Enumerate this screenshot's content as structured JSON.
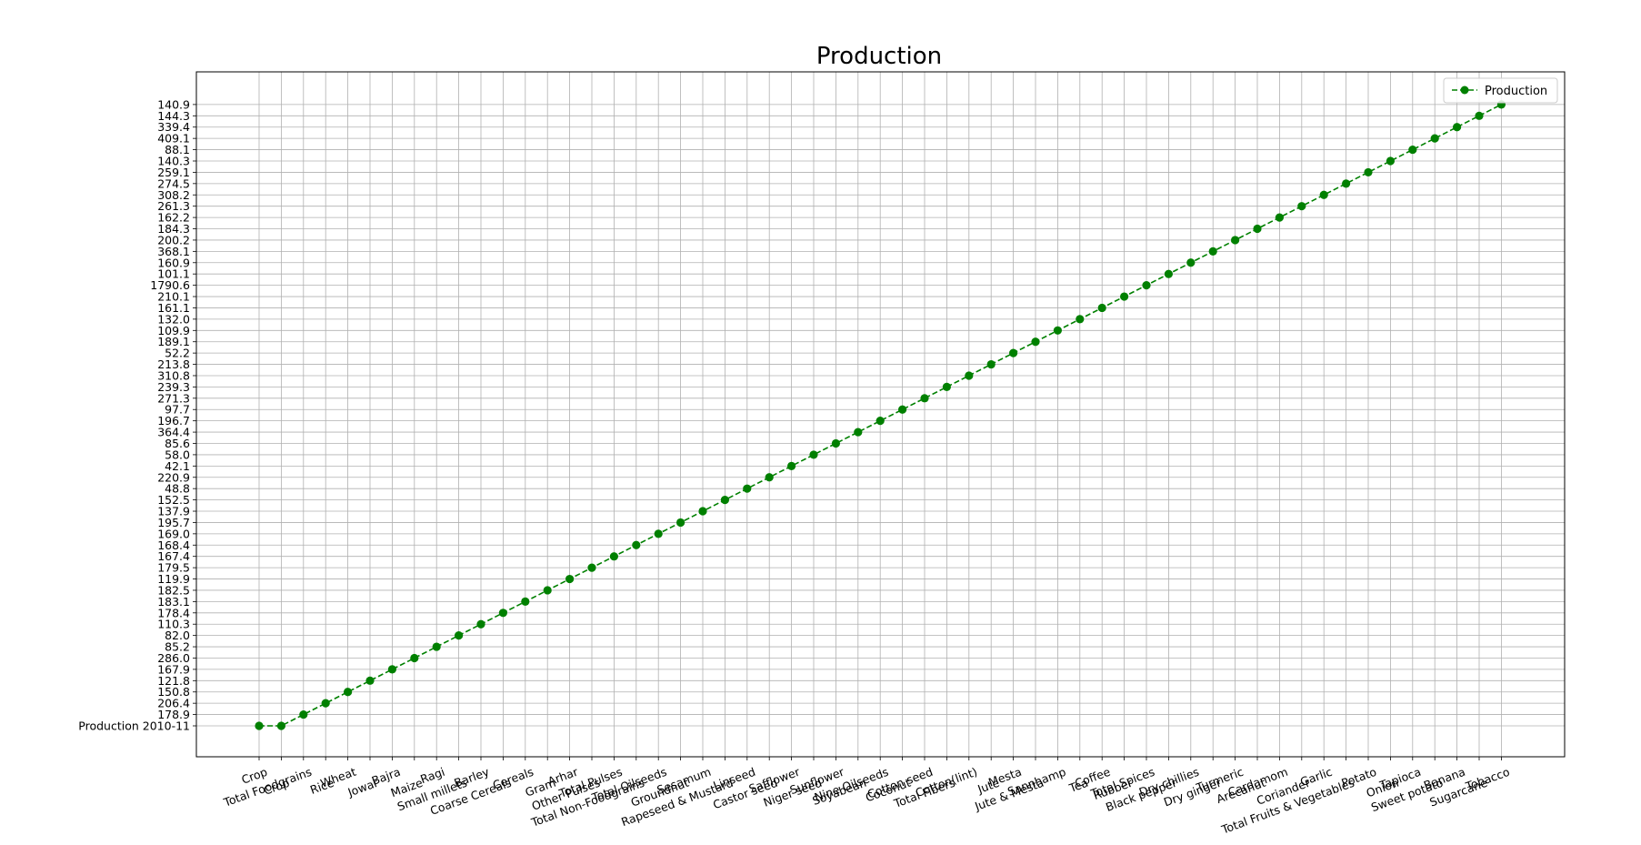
{
  "chart_data": {
    "type": "line",
    "title": "Production",
    "xlabel": "",
    "ylabel": "",
    "grid": true,
    "legend_position": "top-right",
    "categories": [
      "Crop",
      "Crop",
      "Total Foodgrains",
      "Rice",
      "Wheat",
      "Jowar",
      "Bajra",
      "Maize",
      "Ragi",
      "Small millets",
      "Barley",
      "Coarse Cereals",
      "Cereals",
      "Gram",
      "Arhar",
      "Other Pulses",
      "Total Pulses",
      "Total Non-Foodgrains",
      "Total Oilseeds",
      "Groundnut",
      "Sesamum",
      "Rapeseed & Mustard",
      "Linseed",
      "Castor seed",
      "Safflower",
      "Niger seed",
      "Sunflower",
      "Soyabean",
      "Nine Oilseeds",
      "Coconut",
      "Cotton seed",
      "Total Fibers",
      "Cotton(lint)",
      "Jute",
      "Mesta",
      "Jute & Mesta",
      "Sannhamp",
      "Tea",
      "Coffee",
      "Rubber",
      "Total Spices",
      "Black pepper",
      "Dry chillies",
      "Dry ginger",
      "Turmeric",
      "Arecanut",
      "Cardamom",
      "Coriander",
      "Garlic",
      "Total Fruits & Vegetables",
      "Potato",
      "Onion",
      "Tapioca",
      "Sweet potato",
      "Banana",
      "Sugarcane",
      "Tobacco"
    ],
    "y_tick_labels": [
      "Production 2010-11",
      "178.9",
      "206.4",
      "150.8",
      "121.8",
      "167.9",
      "286.0",
      "85.2",
      "82.0",
      "110.3",
      "178.4",
      "183.1",
      "182.5",
      "119.9",
      "179.5",
      "167.4",
      "168.4",
      "169.0",
      "195.7",
      "137.9",
      "152.5",
      "48.8",
      "220.9",
      "42.1",
      "58.0",
      "85.6",
      "364.4",
      "196.7",
      "97.7",
      "271.3",
      "239.3",
      "310.8",
      "213.8",
      "52.2",
      "189.1",
      "109.9",
      "132.0",
      "161.1",
      "210.1",
      "1790.6",
      "101.1",
      "160.9",
      "368.1",
      "200.2",
      "184.3",
      "162.2",
      "261.3",
      "308.2",
      "274.5",
      "259.1",
      "140.3",
      "88.1",
      "409.1",
      "339.4",
      "144.3",
      "140.9"
    ],
    "series": [
      {
        "name": "Production",
        "color": "#008000",
        "style": "dashed",
        "marker": "circle",
        "values": [
          "Production 2010-11",
          "Production 2010-11",
          "178.9",
          "206.4",
          "150.8",
          "121.8",
          "167.9",
          "286.0",
          "85.2",
          "82.0",
          "110.3",
          "178.4",
          "183.1",
          "182.5",
          "119.9",
          "179.5",
          "167.4",
          "168.4",
          "169.0",
          "195.7",
          "137.9",
          "152.5",
          "48.8",
          "220.9",
          "42.1",
          "58.0",
          "85.6",
          "364.4",
          "196.7",
          "97.7",
          "271.3",
          "239.3",
          "310.8",
          "213.8",
          "52.2",
          "189.1",
          "109.9",
          "132.0",
          "161.1",
          "210.1",
          "1790.6",
          "101.1",
          "160.9",
          "368.1",
          "200.2",
          "184.3",
          "162.2",
          "261.3",
          "308.2",
          "274.5",
          "259.1",
          "140.3",
          "88.1",
          "409.1",
          "339.4",
          "144.3",
          "140.9"
        ]
      }
    ]
  }
}
